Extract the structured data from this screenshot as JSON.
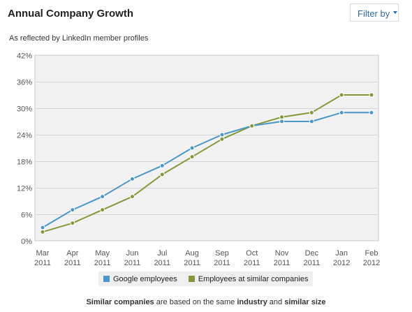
{
  "header": {
    "title": "Annual Company Growth",
    "filter_label": "Filter by",
    "subtitle": "As reflected by LinkedIn member profiles"
  },
  "colors": {
    "series_google": "#4a96c6",
    "series_similar": "#84983a",
    "plot_background": "#f1f1f1",
    "gridline": "#d4d4d4",
    "accent": "#2f6aa3"
  },
  "chart_data": {
    "type": "line",
    "title": "Annual Company Growth",
    "subtitle": "As reflected by LinkedIn member profiles",
    "x": [
      [
        "Mar",
        "2011"
      ],
      [
        "Apr",
        "2011"
      ],
      [
        "May",
        "2011"
      ],
      [
        "Jun",
        "2011"
      ],
      [
        "Jul",
        "2011"
      ],
      [
        "Aug",
        "2011"
      ],
      [
        "Sep",
        "2011"
      ],
      [
        "Oct",
        "2011"
      ],
      [
        "Nov",
        "2011"
      ],
      [
        "Dec",
        "2011"
      ],
      [
        "Jan",
        "2012"
      ],
      [
        "Feb",
        "2012"
      ]
    ],
    "ylim": [
      0,
      42
    ],
    "yticks": [
      "0%",
      "6%",
      "12%",
      "18%",
      "24%",
      "30%",
      "36%",
      "42%"
    ],
    "grid": true,
    "legend_position": "bottom",
    "series": [
      {
        "name": "Google employees",
        "color": "#4a96c6",
        "values": [
          3,
          7,
          10,
          14,
          17,
          21,
          24,
          26,
          27,
          27,
          29,
          29
        ]
      },
      {
        "name": "Employees at similar companies",
        "color": "#84983a",
        "values": [
          2,
          4,
          7,
          10,
          15,
          19,
          23,
          26,
          28,
          29,
          33,
          33
        ]
      }
    ]
  },
  "footer": {
    "t1": "Similar companies",
    "t2": " are based on the same ",
    "t3": "industry",
    "t4": " and ",
    "t5": "similar size"
  }
}
